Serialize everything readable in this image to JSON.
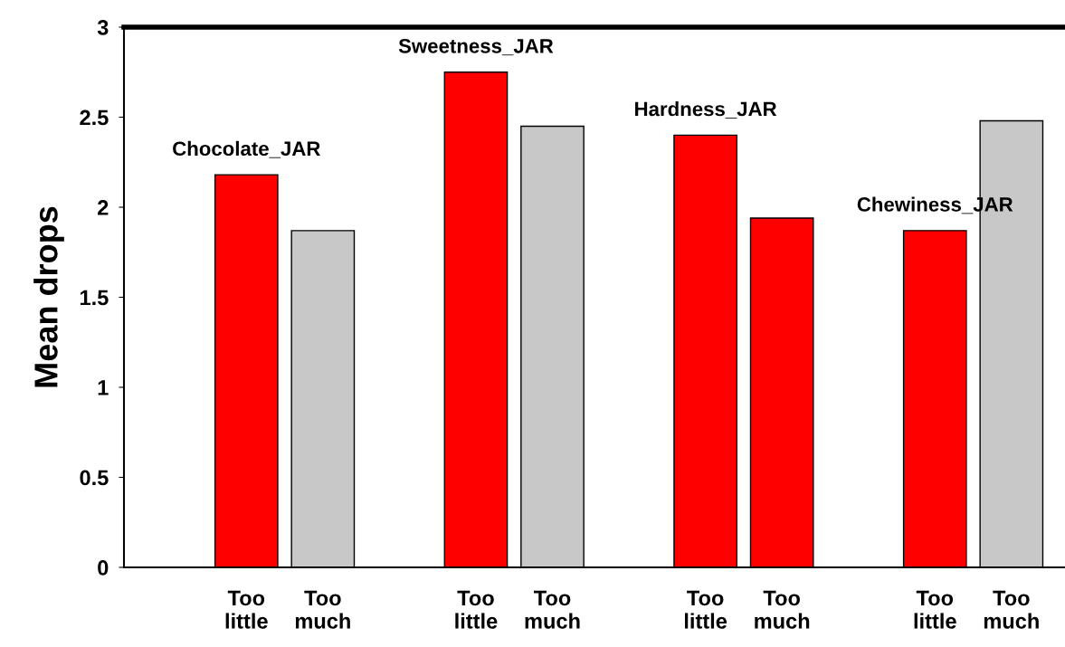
{
  "chart_data": {
    "type": "bar",
    "ylabel": "Mean drops",
    "categories": [
      null,
      "Too\nlittle",
      "Too\nmuch",
      null,
      "Too\nlittle",
      "Too\nmuch",
      null,
      "Too\nlittle",
      "Too\nmuch",
      null,
      "Too\nlittle",
      "Too\nmuch"
    ],
    "values": [
      null,
      2.18,
      1.87,
      null,
      2.75,
      2.45,
      null,
      2.4,
      1.94,
      null,
      1.87,
      2.48
    ],
    "colors": [
      null,
      "#ff0000",
      "#c8c8c8",
      null,
      "#ff0000",
      "#c8c8c8",
      null,
      "#ff0000",
      "#ff0000",
      null,
      "#ff0000",
      "#c8c8c8"
    ],
    "annotations": [
      "Chocolate_JAR",
      "Sweetness_JAR",
      "Hardness_JAR",
      "Chewiness_JAR"
    ],
    "ylim": [
      0,
      3
    ],
    "yticks": [
      0,
      0.5,
      1,
      1.5,
      2,
      2.5,
      3
    ],
    "grid": false
  }
}
